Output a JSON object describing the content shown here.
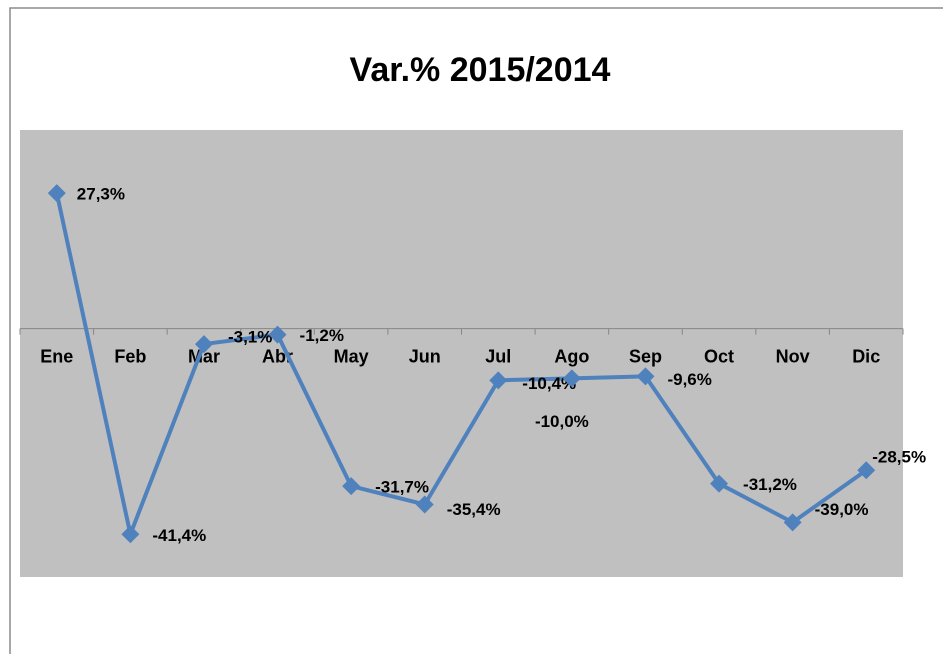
{
  "chart_data": {
    "type": "line",
    "title": "Var.% 2015/2014",
    "categories": [
      "Ene",
      "Feb",
      "Mar",
      "Abr",
      "May",
      "Jun",
      "Jul",
      "Ago",
      "Sep",
      "Oct",
      "Nov",
      "Dic"
    ],
    "series": [
      {
        "name": "Var.% 2015/2014",
        "color": "#4f81bd",
        "values": [
          27.3,
          -41.4,
          -3.1,
          -1.2,
          -31.7,
          -35.4,
          -10.4,
          -10.0,
          -9.6,
          -31.2,
          -39.0,
          -28.5
        ],
        "value_labels": [
          "27,3%",
          "-41,4%",
          "-3,1%",
          "-1,2%",
          "-31,7%",
          "-35,4%",
          "-10,4%",
          "-10,0%",
          "-9,6%",
          "-31,2%",
          "-39,0%",
          "-28,5%"
        ]
      }
    ],
    "ylim": [
      -50,
      40
    ],
    "plot_background": "#c0c0c0",
    "grid": false
  }
}
